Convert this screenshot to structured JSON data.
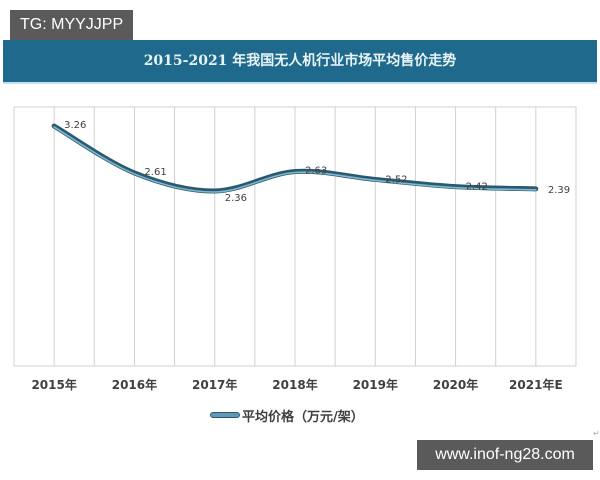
{
  "badge": {
    "text": "TG: MYYJJPP"
  },
  "title": {
    "text": "2015-2021 年我国无人机行业市场平均售价走势"
  },
  "legend": {
    "label": "平均价格（万元/架）"
  },
  "watermark": {
    "text": "www.inof-ng28.com"
  },
  "edge_mark": {
    "text": "↵"
  },
  "colors": {
    "title_bar": "#1f6a8c",
    "title_text": "#e9f4f8",
    "line": "#2b5a70",
    "line_highlight": "#7fb8cf",
    "grid": "#d0d0d0",
    "badge_bg": "#5a5a5a"
  },
  "chart_data": {
    "type": "line",
    "title": "2015-2021 年我国无人机行业市场平均售价走势",
    "categories": [
      "2015年",
      "2016年",
      "2017年",
      "2018年",
      "2019年",
      "2020年",
      "2021年E"
    ],
    "series": [
      {
        "name": "平均价格（万元/架）",
        "values": [
          3.26,
          2.61,
          2.36,
          2.63,
          2.52,
          2.42,
          2.39
        ]
      }
    ],
    "data_labels": [
      "3.26",
      "2.61",
      "2.36",
      "2.63",
      "2.52",
      "2.42",
      "2.39"
    ],
    "xlabel": "",
    "ylabel": "",
    "y_axis_visible": false,
    "grid": {
      "vertical": true,
      "horizontal": false
    },
    "smooth": true,
    "legend_position": "bottom"
  }
}
